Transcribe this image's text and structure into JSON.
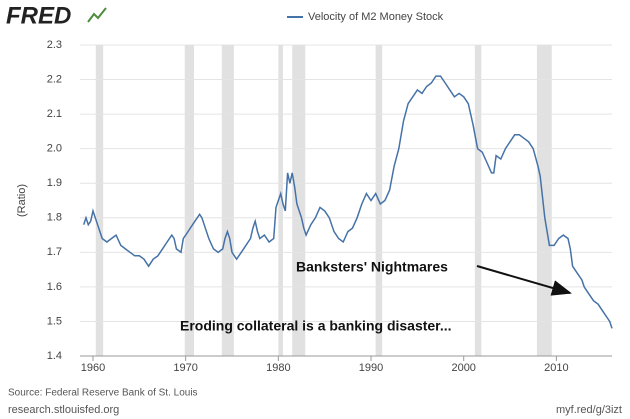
{
  "logo": "FRED",
  "chart_data": {
    "type": "line",
    "y_label": "(Ratio)",
    "series": [
      {
        "name": "Velocity of M2 Money Stock",
        "color": "#4572a7",
        "x": [
          1959.0,
          1959.25,
          1959.5,
          1959.75,
          1960.0,
          1960.25,
          1960.5,
          1960.75,
          1961.0,
          1961.5,
          1962.0,
          1962.5,
          1963.0,
          1963.5,
          1964.0,
          1964.5,
          1965.0,
          1965.5,
          1966.0,
          1966.5,
          1967.0,
          1967.5,
          1968.0,
          1968.5,
          1968.75,
          1969.0,
          1969.5,
          1969.75,
          1970.0,
          1970.5,
          1970.75,
          1971.0,
          1971.5,
          1971.75,
          1972.0,
          1972.5,
          1973.0,
          1973.5,
          1974.0,
          1974.25,
          1974.5,
          1974.75,
          1975.0,
          1975.5,
          1976.0,
          1976.5,
          1977.0,
          1977.25,
          1977.5,
          1977.75,
          1978.0,
          1978.5,
          1979.0,
          1979.5,
          1979.75,
          1980.25,
          1980.5,
          1980.75,
          1981.0,
          1981.25,
          1981.5,
          1981.75,
          1982.0,
          1982.5,
          1982.75,
          1983.0,
          1983.5,
          1984.0,
          1984.5,
          1985.0,
          1985.5,
          1986.0,
          1986.5,
          1987.0,
          1987.5,
          1988.0,
          1988.5,
          1989.0,
          1989.5,
          1990.0,
          1990.5,
          1991.0,
          1991.5,
          1992.0,
          1992.5,
          1993.0,
          1993.5,
          1994.0,
          1995.0,
          1995.5,
          1996.0,
          1996.5,
          1997.0,
          1997.5,
          1998.0,
          1998.5,
          1999.0,
          1999.5,
          2000.0,
          2000.5,
          2001.0,
          2001.5,
          2002.0,
          2002.5,
          2003.0,
          2003.25,
          2003.5,
          2004.0,
          2004.5,
          2005.0,
          2005.5,
          2006.0,
          2006.5,
          2007.0,
          2007.5,
          2008.0,
          2008.25,
          2008.75,
          2009.25,
          2009.75,
          2010.25,
          2010.75,
          2011.25,
          2011.5,
          2011.75,
          2012.25,
          2012.75,
          2013.0,
          2013.5,
          2014.0,
          2014.5,
          2015.0,
          2015.5,
          2015.75,
          2016.0
        ],
        "values": [
          1.78,
          1.8,
          1.78,
          1.79,
          1.82,
          1.8,
          1.78,
          1.76,
          1.74,
          1.73,
          1.74,
          1.75,
          1.72,
          1.71,
          1.7,
          1.69,
          1.69,
          1.68,
          1.66,
          1.68,
          1.69,
          1.71,
          1.73,
          1.75,
          1.74,
          1.71,
          1.7,
          1.74,
          1.75,
          1.77,
          1.78,
          1.79,
          1.81,
          1.8,
          1.78,
          1.74,
          1.71,
          1.7,
          1.71,
          1.74,
          1.76,
          1.74,
          1.7,
          1.68,
          1.7,
          1.72,
          1.74,
          1.77,
          1.79,
          1.76,
          1.74,
          1.75,
          1.73,
          1.74,
          1.83,
          1.87,
          1.84,
          1.82,
          1.93,
          1.9,
          1.93,
          1.89,
          1.84,
          1.8,
          1.77,
          1.75,
          1.78,
          1.8,
          1.83,
          1.82,
          1.8,
          1.76,
          1.74,
          1.73,
          1.76,
          1.77,
          1.8,
          1.84,
          1.87,
          1.85,
          1.87,
          1.84,
          1.85,
          1.88,
          1.95,
          2.0,
          2.08,
          2.13,
          2.17,
          2.16,
          2.18,
          2.19,
          2.21,
          2.21,
          2.19,
          2.17,
          2.15,
          2.16,
          2.15,
          2.13,
          2.07,
          2.0,
          1.99,
          1.96,
          1.93,
          1.93,
          1.98,
          1.97,
          2.0,
          2.02,
          2.04,
          2.04,
          2.03,
          2.02,
          2.0,
          1.95,
          1.92,
          1.8,
          1.72,
          1.72,
          1.74,
          1.75,
          1.74,
          1.71,
          1.66,
          1.64,
          1.62,
          1.6,
          1.58,
          1.56,
          1.55,
          1.53,
          1.51,
          1.5,
          1.48
        ]
      }
    ],
    "xlim": [
      1958.6,
      2016.0
    ],
    "ylim": [
      1.4,
      2.3
    ],
    "xticks": [
      1960,
      1970,
      1980,
      1990,
      2000,
      2010
    ],
    "yticks": [
      1.4,
      1.5,
      1.6,
      1.7,
      1.8,
      1.9,
      {
        "value": 2,
        "label": "2.0"
      },
      2.1,
      2.2,
      2.3
    ],
    "grid": true,
    "recessions": [
      [
        1960.3,
        1961.1
      ],
      [
        1969.9,
        1970.9
      ],
      [
        1973.9,
        1975.2
      ],
      [
        1980.0,
        1980.5
      ],
      [
        1981.5,
        1982.9
      ],
      [
        1990.5,
        1991.2
      ],
      [
        2001.2,
        2001.9
      ],
      [
        2007.9,
        2009.5
      ]
    ],
    "recession_color": "#e1e1e1",
    "annotations": [
      "Banksters' Nightmares",
      "Eroding collateral is a banking disaster..."
    ]
  },
  "footer": {
    "source": "Source: Federal Reserve Bank of St. Louis",
    "site": "research.stlouisfed.org",
    "link": "myf.red/g/3izt"
  }
}
